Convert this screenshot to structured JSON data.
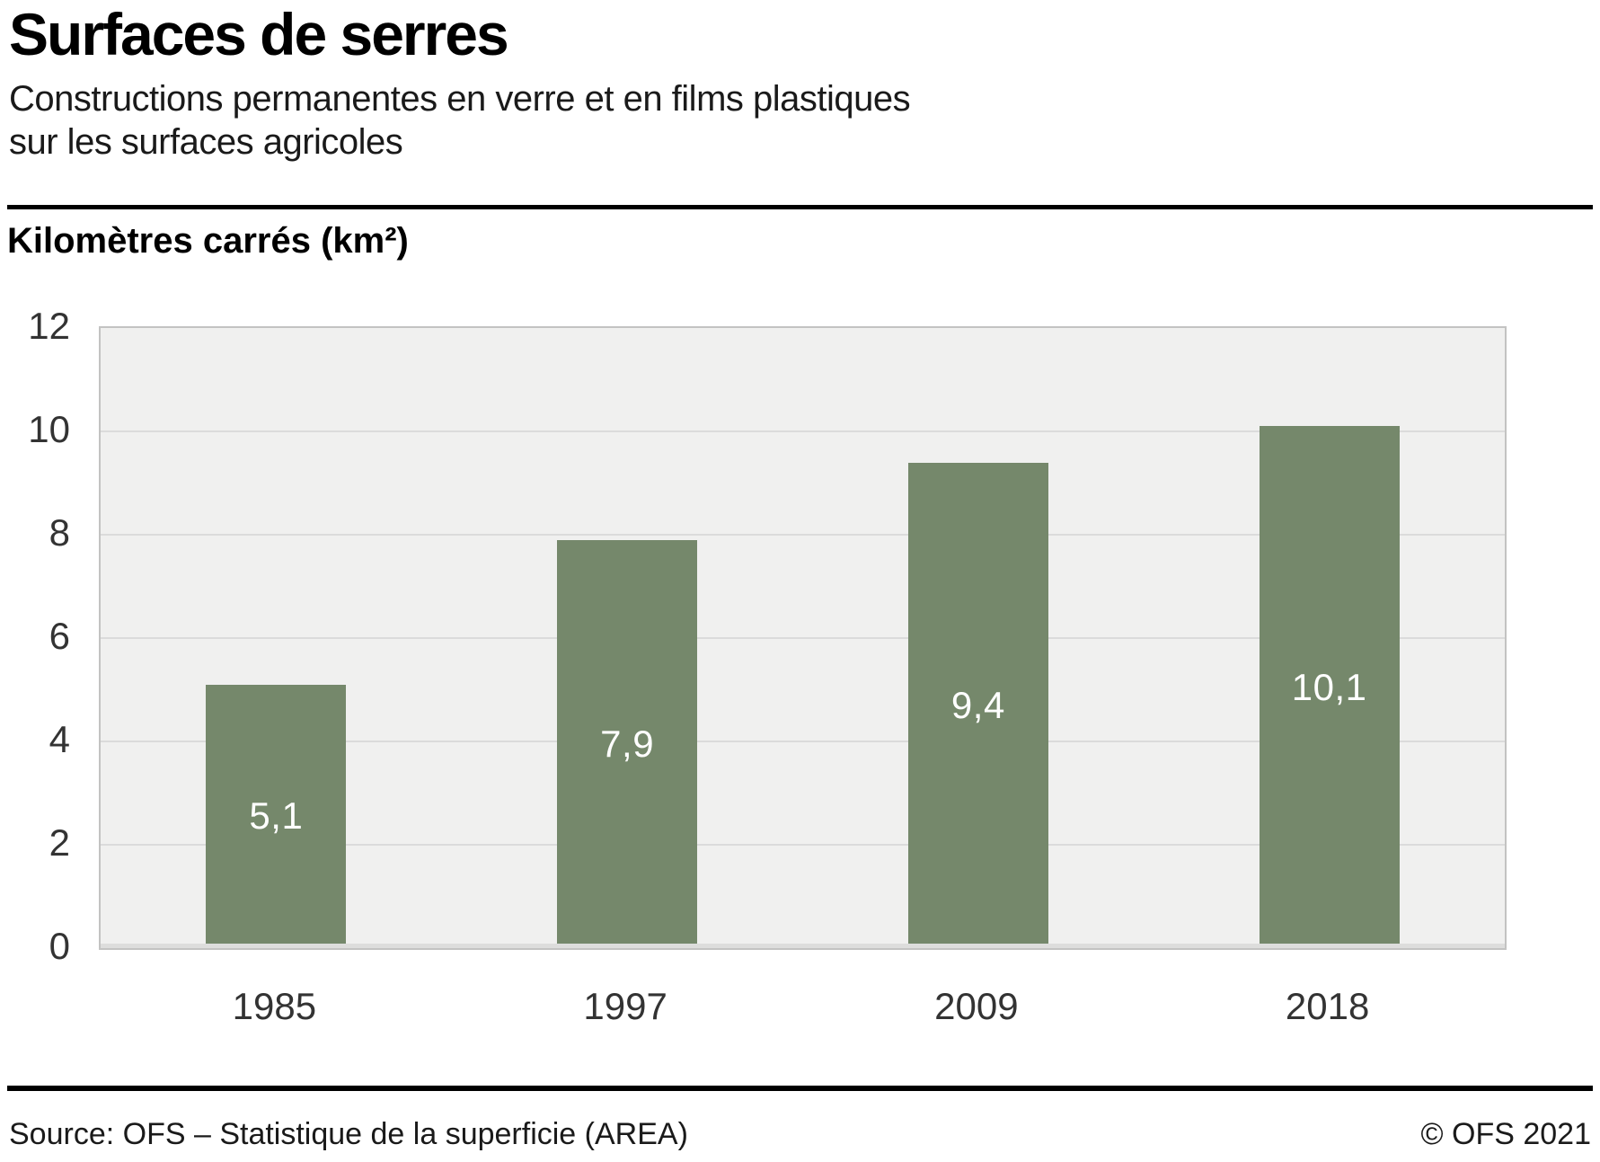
{
  "header": {
    "title": "Surfaces de serres",
    "subtitle_lines": [
      "Constructions permanentes en verre et en films plastiques",
      "sur les surfaces agricoles"
    ]
  },
  "chart": {
    "axis_title": "Kilomètres carrés (km²)"
  },
  "chart_data": {
    "type": "bar",
    "title": "Surfaces de serres",
    "subtitle": "Constructions permanentes en verre et en films plastiques sur les surfaces agricoles",
    "ylabel": "Kilomètres carrés (km²)",
    "xlabel": "",
    "categories": [
      "1985",
      "1997",
      "2009",
      "2018"
    ],
    "values": [
      5.1,
      7.9,
      9.4,
      10.1
    ],
    "value_labels": [
      "5,1",
      "7,9",
      "9,4",
      "10,1"
    ],
    "ylim": [
      0,
      12
    ],
    "yticks": [
      0,
      2,
      4,
      6,
      8,
      10,
      12
    ],
    "grid": true,
    "legend": false,
    "bar_color": "#75886b",
    "plot_background": "#f0f0ef",
    "gridline_color": "#dbdbdb",
    "label_color": "#ffffff"
  },
  "footer": {
    "source": "Source: OFS – Statistique de la superficie (AREA)",
    "copyright": "© OFS 2021"
  }
}
